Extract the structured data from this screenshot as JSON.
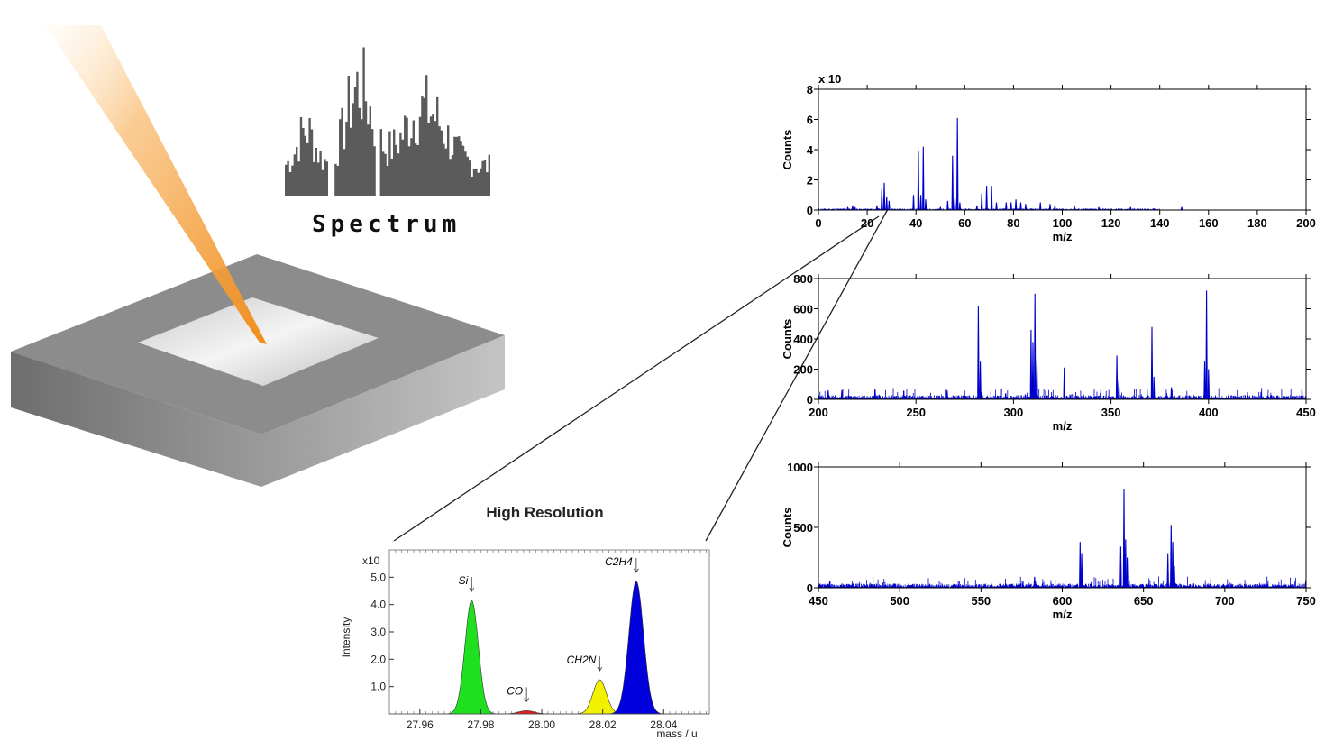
{
  "illustration": {
    "spectrum_label": "Spectrum",
    "colors": {
      "beam": "#f7a23c",
      "substrate": "#8a8a8a",
      "sample": "#dcdcdc",
      "bars": "#5a5a5a"
    }
  },
  "chart_data": [
    {
      "type": "line",
      "ylabel": "Counts",
      "xlabel": "m/z",
      "ymultiplier": "x 10",
      "xlim": [
        0,
        200
      ],
      "ylim": [
        0,
        8
      ],
      "xticks": [
        0,
        20,
        40,
        60,
        80,
        100,
        120,
        140,
        160,
        180,
        200
      ],
      "yticks": [
        0,
        2,
        4,
        6,
        8
      ],
      "color": "#0000cc",
      "peaks": [
        [
          12,
          0.2
        ],
        [
          14,
          0.3
        ],
        [
          15,
          0.2
        ],
        [
          24,
          0.3
        ],
        [
          26,
          1.4
        ],
        [
          27,
          1.8
        ],
        [
          28,
          0.9
        ],
        [
          29,
          0.6
        ],
        [
          39,
          1.0
        ],
        [
          41,
          3.9
        ],
        [
          42,
          1.0
        ],
        [
          43,
          4.2
        ],
        [
          44,
          0.7
        ],
        [
          50,
          0.2
        ],
        [
          53,
          0.6
        ],
        [
          55,
          3.6
        ],
        [
          56,
          0.8
        ],
        [
          57,
          6.1
        ],
        [
          58,
          0.5
        ],
        [
          65,
          0.3
        ],
        [
          67,
          1.1
        ],
        [
          69,
          1.6
        ],
        [
          71,
          1.6
        ],
        [
          73,
          0.5
        ],
        [
          77,
          0.5
        ],
        [
          79,
          0.5
        ],
        [
          81,
          0.7
        ],
        [
          83,
          0.5
        ],
        [
          85,
          0.4
        ],
        [
          91,
          0.5
        ],
        [
          95,
          0.4
        ],
        [
          97,
          0.3
        ],
        [
          105,
          0.3
        ],
        [
          115,
          0.2
        ],
        [
          128,
          0.2
        ],
        [
          149,
          0.2
        ]
      ]
    },
    {
      "type": "line",
      "ylabel": "Counts",
      "xlabel": "m/z",
      "xlim": [
        200,
        450
      ],
      "ylim": [
        0,
        800
      ],
      "xticks": [
        200,
        250,
        300,
        350,
        400,
        450
      ],
      "yticks": [
        0,
        200,
        400,
        600,
        800
      ],
      "color": "#0000cc",
      "peaks": [
        [
          205,
          60
        ],
        [
          212,
          60
        ],
        [
          229,
          70
        ],
        [
          266,
          60
        ],
        [
          282,
          620
        ],
        [
          283,
          250
        ],
        [
          296,
          40
        ],
        [
          309,
          460
        ],
        [
          310,
          380
        ],
        [
          311,
          700
        ],
        [
          312,
          250
        ],
        [
          326,
          210
        ],
        [
          353,
          290
        ],
        [
          354,
          120
        ],
        [
          371,
          480
        ],
        [
          372,
          150
        ],
        [
          381,
          80
        ],
        [
          399,
          720
        ],
        [
          398,
          250
        ],
        [
          400,
          200
        ],
        [
          427,
          50
        ]
      ]
    },
    {
      "type": "line",
      "ylabel": "Counts",
      "xlabel": "m/z",
      "xlim": [
        450,
        750
      ],
      "ylim": [
        0,
        1000
      ],
      "xticks": [
        450,
        500,
        550,
        600,
        650,
        700,
        750
      ],
      "yticks": [
        0,
        500,
        1000
      ],
      "color": "#0000cc",
      "peaks": [
        [
          457,
          60
        ],
        [
          583,
          90
        ],
        [
          611,
          380
        ],
        [
          612,
          280
        ],
        [
          636,
          340
        ],
        [
          638,
          820
        ],
        [
          639,
          400
        ],
        [
          640,
          250
        ],
        [
          665,
          280
        ],
        [
          667,
          520
        ],
        [
          668,
          380
        ],
        [
          669,
          180
        ]
      ]
    },
    {
      "type": "area",
      "title": "High Resolution",
      "ylabel": "Intensity",
      "xlabel": "mass / u",
      "ymultiplier": "x10",
      "xlim": [
        27.95,
        28.055
      ],
      "ylim": [
        0,
        6.0
      ],
      "xticks": [
        "27.96",
        "27.98",
        "28.00",
        "28.02",
        "28.04"
      ],
      "yticks": [
        "1.0",
        "2.0",
        "3.0",
        "4.0",
        "5.0"
      ],
      "series": [
        {
          "name": "Si",
          "center": 27.977,
          "height": 4.15,
          "width": 0.0022,
          "color": "#1ee01e"
        },
        {
          "name": "CO",
          "center": 27.995,
          "height": 0.12,
          "width": 0.0025,
          "color": "#e02020"
        },
        {
          "name": "CH2N",
          "center": 28.019,
          "height": 1.25,
          "width": 0.0022,
          "color": "#f2f200"
        },
        {
          "name": "C2H4",
          "center": 28.031,
          "height": 4.85,
          "width": 0.0024,
          "color": "#0000dd"
        }
      ]
    }
  ]
}
